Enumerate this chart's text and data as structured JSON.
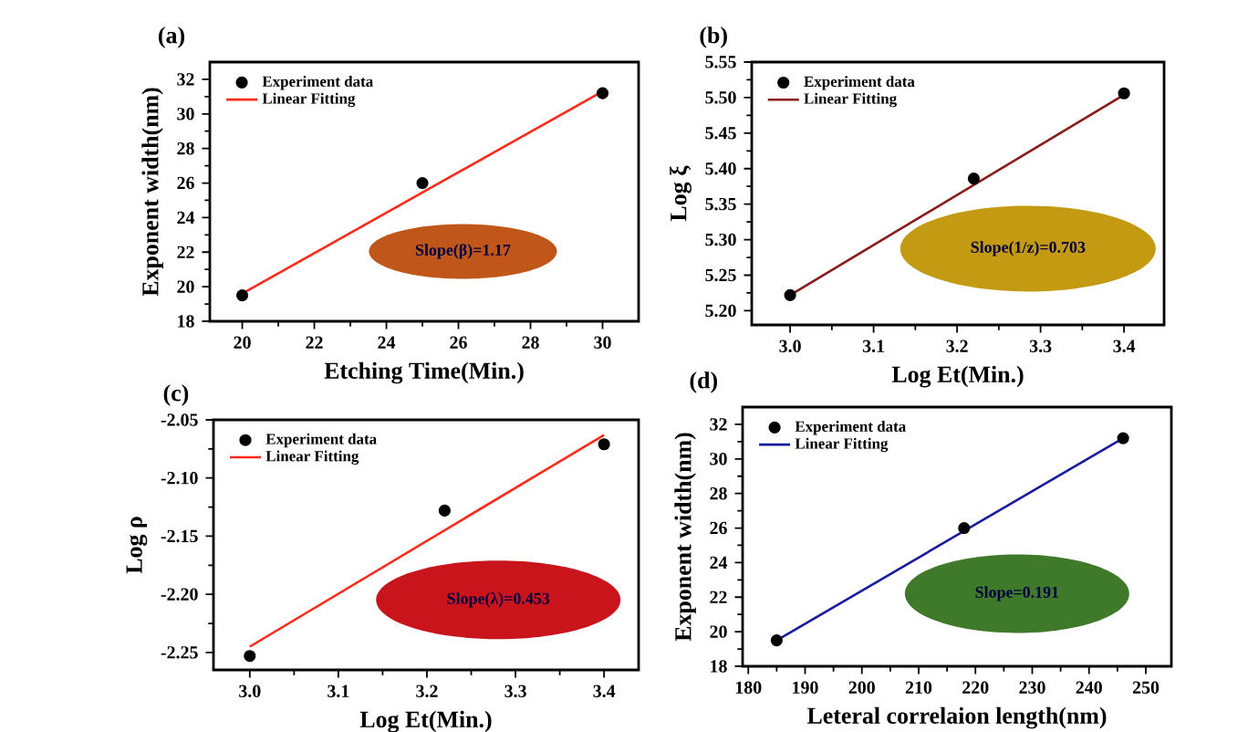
{
  "chart_data": [
    {
      "type": "scatter",
      "title": "(a)",
      "xlabel": "Etching Time(Min.)",
      "ylabel": "Exponent width(nm)",
      "xlim": [
        19.1,
        31.0
      ],
      "ylim": [
        18,
        33
      ],
      "xticks": [
        20,
        22,
        24,
        26,
        28,
        30
      ],
      "yticks": [
        18,
        20,
        22,
        24,
        26,
        28,
        30,
        32
      ],
      "legend": "top left",
      "annotations": [
        "Slope(β)=1.17"
      ],
      "series": [
        {
          "name": "Experiment data",
          "marker": "circle",
          "color": "#000000",
          "x": [
            20,
            25,
            30
          ],
          "values": [
            19.5,
            26,
            31.2
          ]
        },
        {
          "name": "Linear Fitting",
          "type": "line",
          "marker": "none",
          "color": "#ff2a1a",
          "x": [
            20,
            30
          ],
          "values": [
            19.6,
            31.3
          ]
        }
      ]
    },
    {
      "type": "scatter",
      "title": "(b)",
      "xlabel": "Log Et(Min.)",
      "ylabel": "Log ξ",
      "xlim": [
        2.954,
        3.448
      ],
      "ylim": [
        5.18,
        5.55
      ],
      "xticks": [
        {
          "value": 3,
          "label": "3.0"
        },
        3.1,
        3.2,
        3.3,
        3.4
      ],
      "yticks": [
        {
          "value": 5.2,
          "label": "5.20"
        },
        5.25,
        {
          "value": 5.3,
          "label": "5.30"
        },
        5.35,
        {
          "value": 5.4,
          "label": "5.40"
        },
        5.45,
        {
          "value": 5.5,
          "label": "5.50"
        },
        5.55
      ],
      "legend": "top left",
      "annotations": [
        "Slope(1/z)=0.703"
      ],
      "series": [
        {
          "name": "Experiment data",
          "marker": "circle",
          "color": "#000000",
          "x": [
            3.0,
            3.22,
            3.4
          ],
          "values": [
            5.222,
            5.386,
            5.506
          ]
        },
        {
          "name": "Linear Fitting",
          "type": "line",
          "marker": "none",
          "color": "#8b1a1a",
          "x": [
            3.0,
            3.4
          ],
          "values": [
            5.222,
            5.504
          ]
        }
      ]
    },
    {
      "type": "scatter",
      "title": "(c)",
      "xlabel": "Log Et(Min.)",
      "ylabel": "Log ρ",
      "xlim": [
        2.959,
        3.439
      ],
      "ylim": [
        -2.265,
        -2.05
      ],
      "xticks": [
        {
          "value": 3,
          "label": "3.0"
        },
        3.1,
        3.2,
        3.3,
        3.4
      ],
      "yticks": [
        {
          "value": -2.25,
          "label": "-2.25"
        },
        {
          "value": -2.2,
          "label": "-2.20"
        },
        {
          "value": -2.15,
          "label": "-2.15"
        },
        {
          "value": -2.1,
          "label": "-2.10"
        },
        {
          "value": -2.05,
          "label": "-2.05"
        }
      ],
      "legend": "top left",
      "annotations": [
        "Slope(λ)=0.453"
      ],
      "series": [
        {
          "name": "Experiment data",
          "marker": "circle",
          "color": "#000000",
          "x": [
            3.0,
            3.22,
            3.4
          ],
          "values": [
            -2.253,
            -2.128,
            -2.071
          ]
        },
        {
          "name": "Linear Fitting",
          "type": "line",
          "marker": "none",
          "color": "#ff2a1a",
          "x": [
            3.0,
            3.4
          ],
          "values": [
            -2.245,
            -2.063
          ]
        }
      ]
    },
    {
      "type": "scatter",
      "title": "(d)",
      "xlabel": "Leteral correlaion length(nm)",
      "ylabel": "Exponent width(nm)",
      "xlim": [
        179,
        254.5
      ],
      "ylim": [
        18,
        33
      ],
      "xticks": [
        180,
        190,
        200,
        210,
        220,
        230,
        240,
        250
      ],
      "yticks": [
        18,
        20,
        22,
        24,
        26,
        28,
        30,
        32
      ],
      "legend": "top left",
      "annotations": [
        "Slope=0.191"
      ],
      "series": [
        {
          "name": "Experiment data",
          "marker": "circle",
          "color": "#000000",
          "x": [
            185,
            218,
            246
          ],
          "values": [
            19.5,
            26,
            31.2
          ]
        },
        {
          "name": "Linear Fitting",
          "type": "line",
          "marker": "none",
          "color": "#1a1aa0",
          "x": [
            185,
            246
          ],
          "values": [
            19.5,
            31.2
          ]
        }
      ]
    }
  ]
}
